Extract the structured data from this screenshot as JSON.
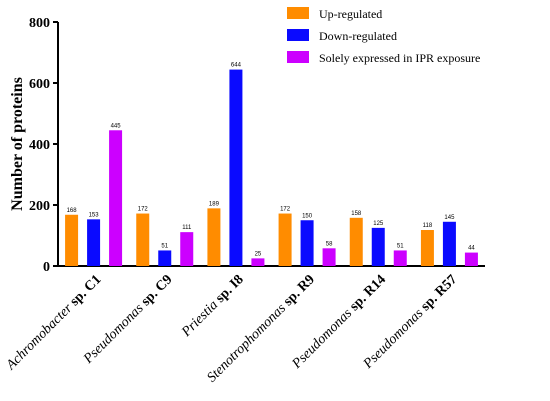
{
  "chart_data": {
    "type": "bar",
    "ylabel": "Number of proteins",
    "xlabel": "",
    "ylim": [
      0,
      800
    ],
    "yticks": [
      0,
      200,
      400,
      600,
      800
    ],
    "grid": false,
    "legend_position": "top-right",
    "categories": [
      {
        "genus": "Achromobacter",
        "species": "sp. C1"
      },
      {
        "genus": "Pseudomonas",
        "species": "sp. C9"
      },
      {
        "genus": "Priestia",
        "species": "sp. I8"
      },
      {
        "genus": "Stenotrophomonas",
        "species": "sp. R9"
      },
      {
        "genus": "Pseudomonas",
        "species": "sp. R14"
      },
      {
        "genus": "Pseudomonas",
        "species": "sp. R57"
      }
    ],
    "series": [
      {
        "name": "Up-regulated",
        "color": "#ff8c00",
        "values": [
          168,
          172,
          189,
          172,
          158,
          118
        ]
      },
      {
        "name": "Down-regulated",
        "color": "#0a0aff",
        "values": [
          153,
          51,
          644,
          150,
          125,
          145
        ]
      },
      {
        "name": "Solely expressed in IPR exposure",
        "color": "#cc00ff",
        "values": [
          445,
          111,
          25,
          58,
          51,
          44
        ]
      }
    ]
  }
}
